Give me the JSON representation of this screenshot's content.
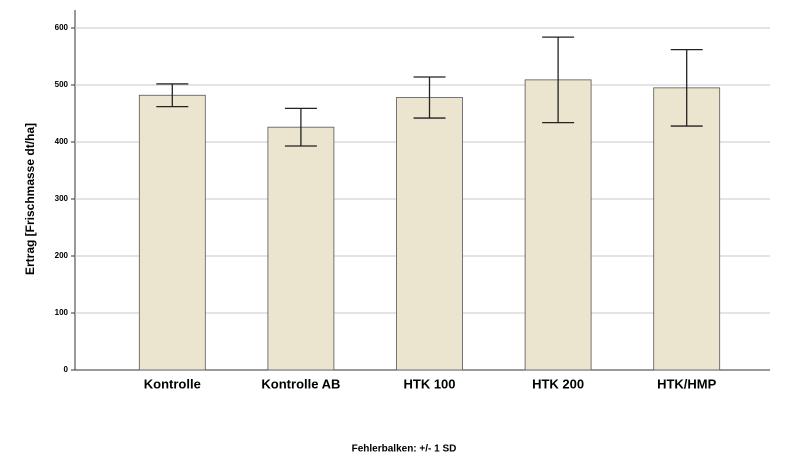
{
  "chart_data": {
    "type": "bar",
    "y_label": "Ertrag [Frischmasse dt/ha]",
    "footnote": "Fehlerbalken: +/- 1 SD",
    "categories": [
      "Kontrolle",
      "Kontrolle AB",
      "HTK 100",
      "HTK 200",
      "HTK/HMP"
    ],
    "values": [
      482,
      426,
      478,
      509,
      495
    ],
    "errors": [
      20,
      33,
      36,
      75,
      67
    ],
    "color": "#ebe4cf",
    "ylim": [
      0,
      600
    ],
    "yticks": [
      0,
      100,
      200,
      300,
      400,
      500,
      600
    ],
    "grid": true
  }
}
